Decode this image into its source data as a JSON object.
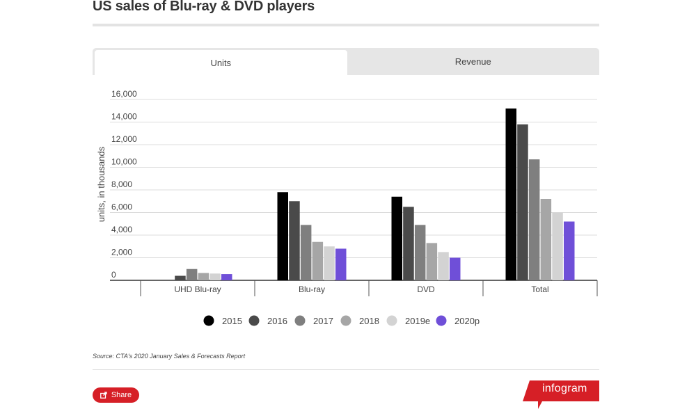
{
  "title": "US sales of Blu-ray & DVD players",
  "tabs": [
    {
      "label": "Units",
      "active": true
    },
    {
      "label": "Revenue",
      "active": false
    }
  ],
  "chart_data": {
    "type": "bar",
    "categories": [
      "UHD Blu-ray",
      "Blu-ray",
      "DVD",
      "Total"
    ],
    "ylabel": "units, in thousands",
    "ylim": [
      0,
      16000
    ],
    "yticks": [
      "0",
      "2,000",
      "4,000",
      "6,000",
      "8,000",
      "10,000",
      "12,000",
      "14,000",
      "16,000"
    ],
    "grid": true,
    "legend_position": "bottom",
    "series": [
      {
        "name": "2015",
        "color": "#000000",
        "values": [
          0,
          7800,
          7400,
          15200
        ]
      },
      {
        "name": "2016",
        "color": "#4a4a4a",
        "values": [
          400,
          7000,
          6500,
          13800
        ]
      },
      {
        "name": "2017",
        "color": "#7f7f7f",
        "values": [
          1000,
          4900,
          4900,
          10700
        ]
      },
      {
        "name": "2018",
        "color": "#a6a6a6",
        "values": [
          650,
          3400,
          3300,
          7200
        ]
      },
      {
        "name": "2019e",
        "color": "#d3d3d3",
        "values": [
          600,
          3000,
          2500,
          6000
        ]
      },
      {
        "name": "2020p",
        "color": "#6f4fd8",
        "values": [
          550,
          2800,
          2000,
          5200
        ]
      }
    ]
  },
  "source": "Source: CTA's 2020 January Sales & Forecasts Report",
  "share_label": "Share",
  "brand": "infogram",
  "colors": {
    "accent": "#d61f26"
  }
}
